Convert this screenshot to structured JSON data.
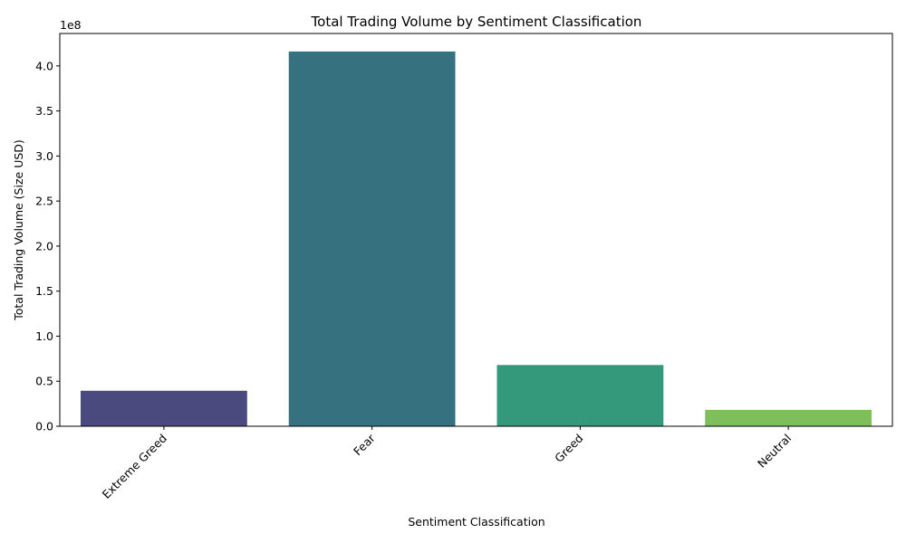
{
  "chart_data": {
    "type": "bar",
    "title": "Total Trading Volume by Sentiment Classification",
    "xlabel": "Sentiment Classification",
    "ylabel": "Total Trading Volume (Size USD)",
    "y_offset_label": "1e8",
    "y_scale": 100000000,
    "ylim": [
      0,
      436000000
    ],
    "yticks": [
      0,
      50000000,
      100000000,
      150000000,
      200000000,
      250000000,
      300000000,
      350000000,
      400000000
    ],
    "ytick_labels": [
      "0.0",
      "0.5",
      "1.0",
      "1.5",
      "2.0",
      "2.5",
      "3.0",
      "3.5",
      "4.0"
    ],
    "categories": [
      "Extreme Greed",
      "Fear",
      "Greed",
      "Neutral"
    ],
    "values": [
      39400000,
      416000000,
      68000000,
      18200000
    ],
    "colors": [
      "#4a4a7e",
      "#367180",
      "#34997b",
      "#7ebf5b"
    ],
    "grid": false,
    "legend": "none"
  }
}
